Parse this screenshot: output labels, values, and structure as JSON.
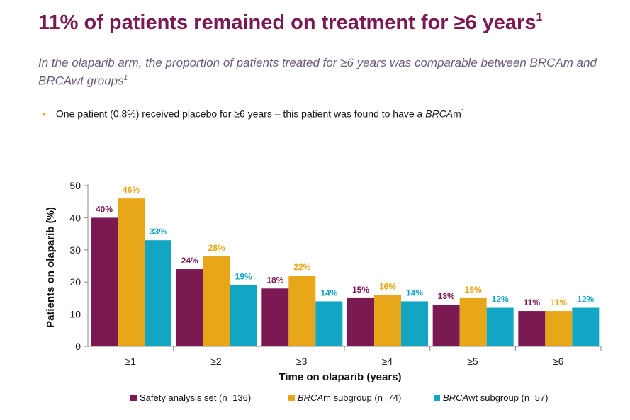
{
  "header": {
    "title": "11% of patients remained on treatment for ≥6 years",
    "title_sup": "1",
    "subtitle": "In the olaparib arm, the proportion of patients treated for ≥6 years was comparable between BRCAm and BRCAwt groups",
    "subtitle_sup": "1"
  },
  "bullet": {
    "text": "One patient (0.8%) received placebo for ≥6 years – this patient was found to have a ",
    "emph": "BRCA",
    "emph_tail": "m",
    "sup": "1"
  },
  "chart_data": {
    "type": "bar",
    "categories": [
      "≥1",
      "≥2",
      "≥3",
      "≥4",
      "≥5",
      "≥6"
    ],
    "series": [
      {
        "name": "Safety analysis set (n=136)",
        "name_italic": "",
        "name_rest": "Safety analysis set (n=136)",
        "color": "#7b1a52",
        "values": [
          40,
          24,
          18,
          15,
          13,
          11
        ],
        "labels": [
          "40%",
          "24%",
          "18%",
          "15%",
          "13%",
          "11%"
        ]
      },
      {
        "name": "BRCAm subgroup (n=74)",
        "name_italic": "BRCA",
        "name_rest": "m subgroup (n=74)",
        "color": "#e8a719",
        "values": [
          46,
          28,
          22,
          16,
          15,
          11
        ],
        "labels": [
          "46%",
          "28%",
          "22%",
          "16%",
          "15%",
          "11%"
        ]
      },
      {
        "name": "BRCAwt subgroup (n=57)",
        "name_italic": "BRCA",
        "name_rest": "wt subgroup (n=57)",
        "color": "#13a6c4",
        "values": [
          33,
          19,
          14,
          14,
          12,
          12
        ],
        "labels": [
          "33%",
          "19%",
          "14%",
          "14%",
          "12%",
          "12%"
        ]
      }
    ],
    "xlabel": "Time on olaparib (years)",
    "ylabel": "Patients on olaparib (%)",
    "ylim": [
      0,
      50
    ],
    "yticks": [
      0,
      10,
      20,
      30,
      40,
      50
    ],
    "grid": false,
    "legend_position": "bottom"
  }
}
